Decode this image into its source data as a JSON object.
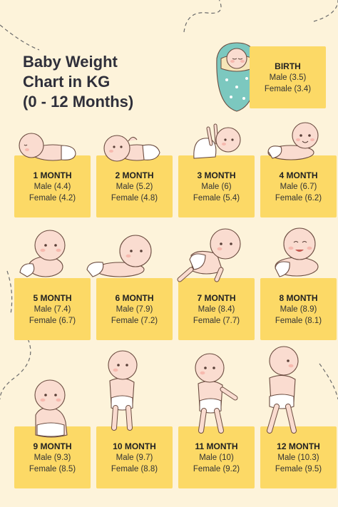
{
  "title_lines": [
    "Baby Weight",
    "Chart in KG",
    "(0 - 12 Months)"
  ],
  "colors": {
    "background": "#fdf3da",
    "card": "#fcd966",
    "title": "#2f2f3a",
    "swaddle": "#7cc8bf"
  },
  "birth": {
    "label": "BIRTH",
    "male": "Male (3.5)",
    "female": "Female (3.4)"
  },
  "months": [
    {
      "label": "1 MONTH",
      "male": "Male (4.4)",
      "female": "Female (4.2)"
    },
    {
      "label": "2 MONTH",
      "male": "Male (5.2)",
      "female": "Female (4.8)"
    },
    {
      "label": "3 MONTH",
      "male": "Male (6)",
      "female": "Female (5.4)"
    },
    {
      "label": "4 MONTH",
      "male": "Male (6.7)",
      "female": "Female (6.2)"
    },
    {
      "label": "5 MONTH",
      "male": "Male (7.4)",
      "female": "Female (6.7)"
    },
    {
      "label": "6 MONTH",
      "male": "Male (7.9)",
      "female": "Female (7.2)"
    },
    {
      "label": "7 MONTH",
      "male": "Male (8.4)",
      "female": "Female (7.7)"
    },
    {
      "label": "8 MONTH",
      "male": "Male (8.9)",
      "female": "Female (8.1)"
    },
    {
      "label": "9 MONTH",
      "male": "Male (9.3)",
      "female": "Female (8.5)"
    },
    {
      "label": "10 MONTH",
      "male": "Male (9.7)",
      "female": "Female (8.8)"
    },
    {
      "label": "11 MONTH",
      "male": "Male (10)",
      "female": "Female (9.2)"
    },
    {
      "label": "12 MONTH",
      "male": "Male (10.3)",
      "female": "Female (9.5)"
    }
  ],
  "illustrations": {
    "birth": "swaddled-newborn-illustration",
    "months": [
      "baby-lying-illustration",
      "baby-lying-back-illustration",
      "baby-playing-illustration",
      "baby-tummy-time-illustration",
      "baby-sitting-illustration",
      "baby-crawling-prone-illustration",
      "baby-crawling-illustration",
      "baby-lying-smiling-illustration",
      "baby-sitting-up-illustration",
      "baby-standing-illustration",
      "baby-walking-illustration",
      "baby-walking-side-illustration"
    ]
  }
}
